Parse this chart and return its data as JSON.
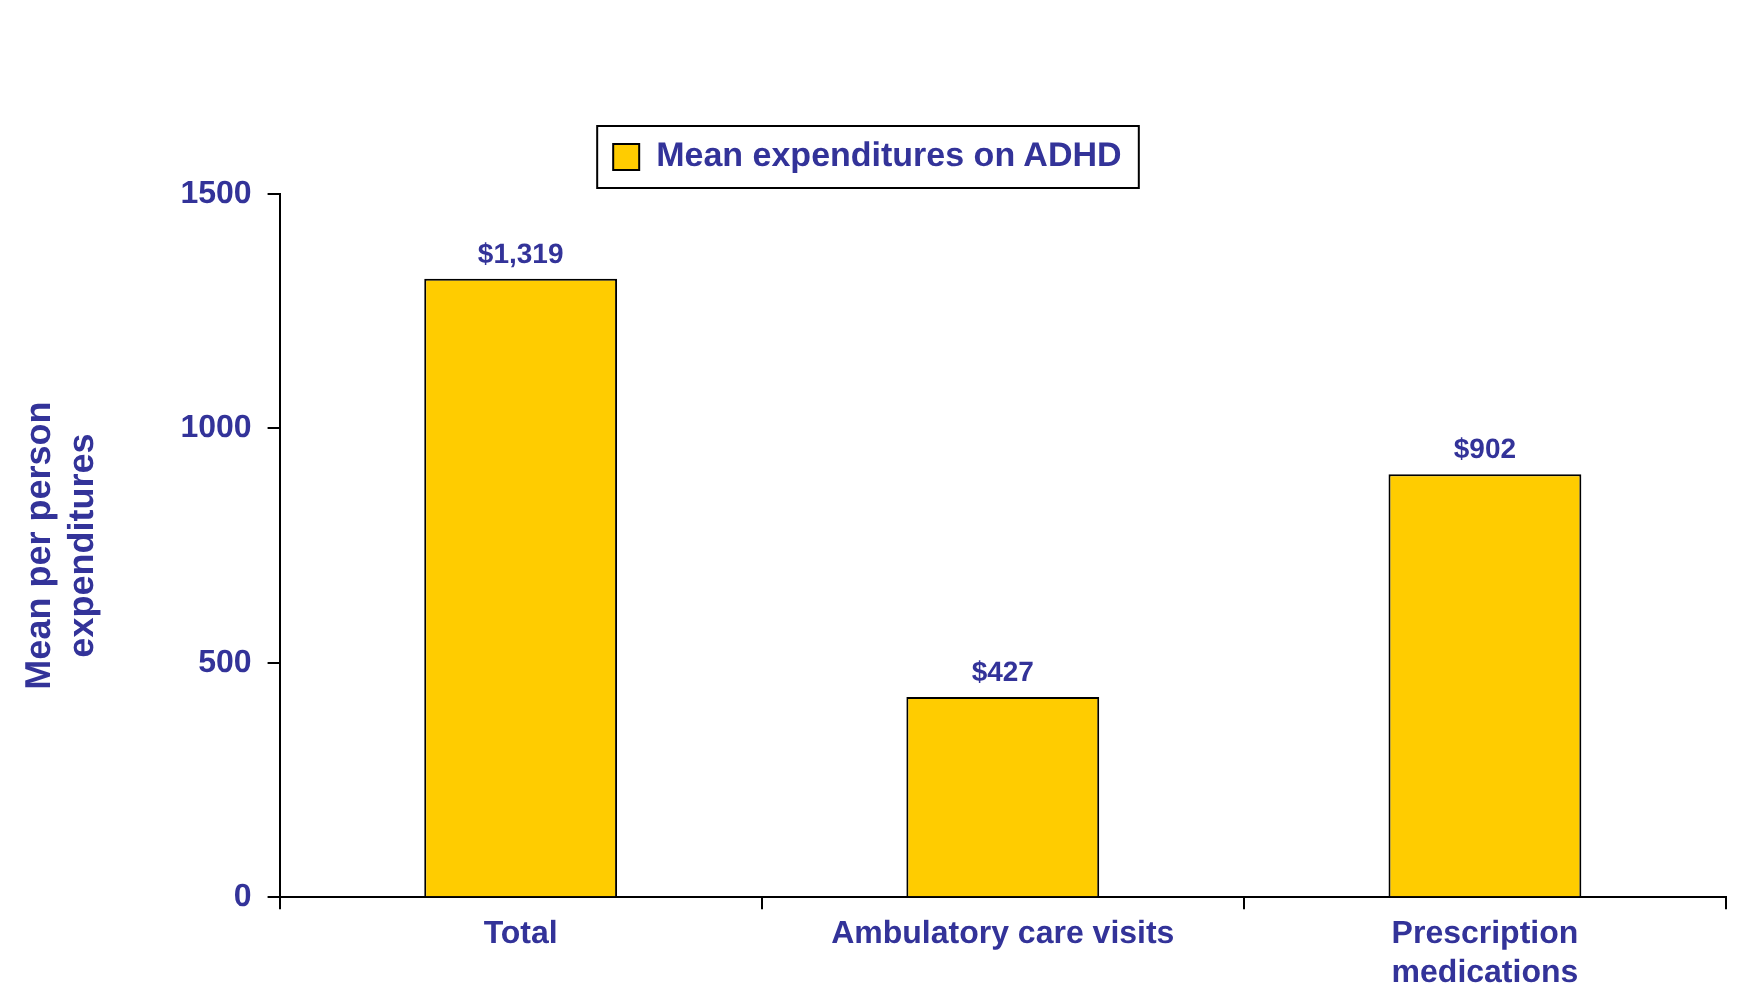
{
  "chart_data": {
    "type": "bar",
    "categories": [
      "Total",
      "Ambulatory care visits",
      "Prescription medications"
    ],
    "series": [
      {
        "name": "Mean expenditures on ADHD",
        "color": "#ffcc00",
        "values": [
          1319,
          427,
          902
        ],
        "value_labels": [
          "$1,319",
          "$427",
          "$902"
        ]
      }
    ],
    "ylabel": "Mean per person expenditures",
    "ylim": [
      0,
      1500
    ],
    "yticks": [
      0,
      500,
      1000,
      1500
    ],
    "grid": false,
    "legend": "top"
  }
}
